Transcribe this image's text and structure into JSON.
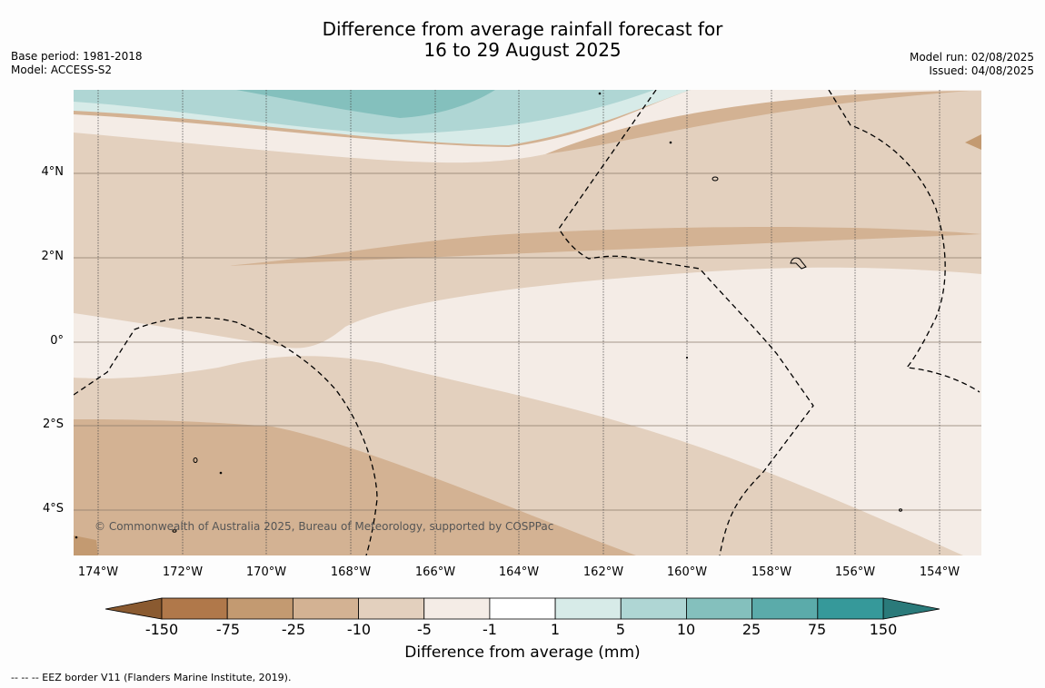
{
  "header": {
    "title_line1": "Difference from average rainfall forecast for",
    "title_line2": "16 to 29 August 2025",
    "base_period": "Base period: 1981-2018",
    "model": "Model: ACCESS-S2",
    "model_run": "Model run: 02/08/2025",
    "issued": "Issued: 04/08/2025"
  },
  "map": {
    "lat_labels": [
      "4°N",
      "2°N",
      "0°",
      "2°S",
      "4°S"
    ],
    "lon_labels": [
      "174°W",
      "172°W",
      "170°W",
      "168°W",
      "166°W",
      "164°W",
      "162°W",
      "160°W",
      "158°W",
      "156°W",
      "154°W"
    ],
    "credit": "© Commonwealth of Australia 2025, Bureau of Meteorology, supported by COSPPac"
  },
  "colorbar": {
    "ticks": [
      "-150",
      "-75",
      "-25",
      "-10",
      "-5",
      "-1",
      "1",
      "5",
      "10",
      "25",
      "75",
      "150"
    ],
    "colors": [
      "#b0784a",
      "#c39a71",
      "#d3b293",
      "#e3d0be",
      "#f4ece6",
      "#ffffff",
      "#d7ebe8",
      "#afd6d4",
      "#84c0bd",
      "#5babaa",
      "#36999a"
    ],
    "extend_low": "#8a5a30",
    "extend_high": "#2a7a7a",
    "label": "Difference from average (mm)"
  },
  "footnote": "--  --  -- EEZ border V11 (Flanders Marine Institute, 2019)."
}
